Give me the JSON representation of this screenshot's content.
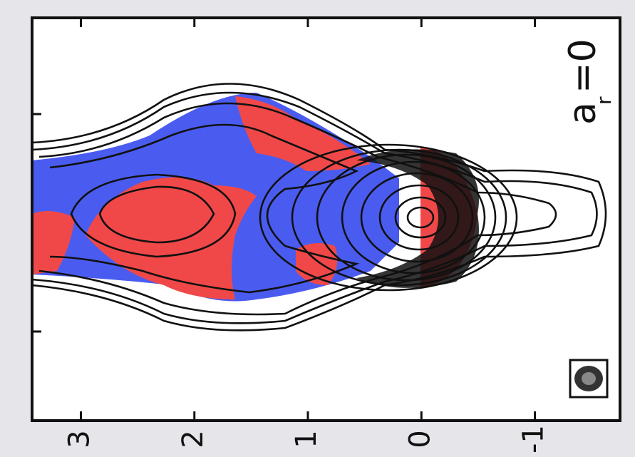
{
  "chart_data": {
    "type": "contour",
    "xlim": [
      3.43,
      -1.75
    ],
    "xticks": [
      3,
      2,
      1,
      0,
      -1
    ],
    "annotation": {
      "symbol": "a",
      "subscript": "r",
      "equals": "=0"
    }
  }
}
